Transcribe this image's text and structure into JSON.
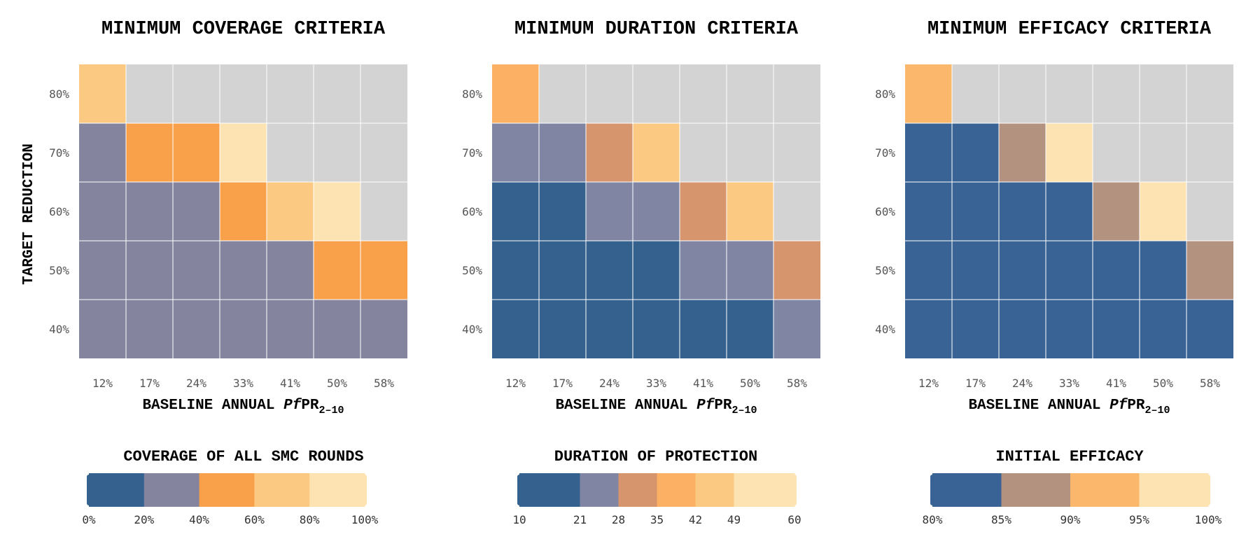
{
  "shared": {
    "ylabel": "TARGET REDUCTION",
    "xlabel_parts": {
      "pre": "BASELINE ANNUAL ",
      "italic": "Pf",
      "post": "PR",
      "sub": "2–10"
    },
    "x_ticks": [
      "12%",
      "17%",
      "24%",
      "33%",
      "41%",
      "50%",
      "58%"
    ],
    "y_ticks_top_to_bottom": [
      "80%",
      "70%",
      "60%",
      "50%",
      "40%"
    ]
  },
  "chart_data": [
    {
      "type": "heatmap",
      "title": "MINIMUM COVERAGE CRITERIA",
      "note": "cells hold the color-bin index (0 = lowest bin, null = not achievable / grey); rows top to bottom",
      "grid": [
        [
          3,
          null,
          null,
          null,
          null,
          null,
          null
        ],
        [
          1,
          2,
          2,
          4,
          null,
          null,
          null
        ],
        [
          1,
          1,
          1,
          2,
          3,
          4,
          null
        ],
        [
          1,
          1,
          1,
          1,
          1,
          2,
          2
        ],
        [
          1,
          1,
          1,
          1,
          1,
          1,
          1
        ]
      ],
      "legend": {
        "title": "COVERAGE OF ALL SMC ROUNDS",
        "bins": [
          {
            "from": 0,
            "to": 20,
            "color": "#35618f"
          },
          {
            "from": 20,
            "to": 40,
            "color": "#85849e"
          },
          {
            "from": 40,
            "to": 60,
            "color": "#f9a04a"
          },
          {
            "from": 60,
            "to": 80,
            "color": "#fbc981"
          },
          {
            "from": 80,
            "to": 100,
            "color": "#fde3b2"
          }
        ],
        "tick_labels": [
          "0%",
          "20%",
          "40%",
          "60%",
          "80%",
          "100%"
        ]
      }
    },
    {
      "type": "heatmap",
      "title": "MINIMUM DURATION CRITERIA",
      "note": "cells hold the color-bin index (0 = lowest bin, null = not achievable / grey); rows top to bottom",
      "grid": [
        [
          3,
          null,
          null,
          null,
          null,
          null,
          null
        ],
        [
          1,
          1,
          2,
          4,
          null,
          null,
          null
        ],
        [
          0,
          0,
          1,
          1,
          2,
          4,
          null
        ],
        [
          0,
          0,
          0,
          0,
          1,
          1,
          2
        ],
        [
          0,
          0,
          0,
          0,
          0,
          0,
          1
        ]
      ],
      "legend": {
        "title": "DURATION OF PROTECTION",
        "bins": [
          {
            "from": 10,
            "to": 21,
            "color": "#35618f"
          },
          {
            "from": 21,
            "to": 28,
            "color": "#7f85a3"
          },
          {
            "from": 28,
            "to": 35,
            "color": "#d6956d"
          },
          {
            "from": 35,
            "to": 42,
            "color": "#fbb063"
          },
          {
            "from": 42,
            "to": 49,
            "color": "#fbc981"
          },
          {
            "from": 49,
            "to": 60,
            "color": "#fde3b2"
          }
        ],
        "tick_labels": [
          "10",
          "21",
          "28",
          "35",
          "42",
          "49",
          "60"
        ]
      }
    },
    {
      "type": "heatmap",
      "title": "MINIMUM EFFICACY CRITERIA",
      "note": "cells hold the color-bin index (0 = lowest bin, null = not achievable / grey); rows top to bottom",
      "grid": [
        [
          2,
          null,
          null,
          null,
          null,
          null,
          null
        ],
        [
          0,
          0,
          1,
          3,
          null,
          null,
          null
        ],
        [
          0,
          0,
          0,
          0,
          1,
          3,
          null
        ],
        [
          0,
          0,
          0,
          0,
          0,
          0,
          1
        ],
        [
          0,
          0,
          0,
          0,
          0,
          0,
          0
        ]
      ],
      "legend": {
        "title": "INITIAL EFFICACY",
        "bins": [
          {
            "from": 80,
            "to": 85,
            "color": "#396394"
          },
          {
            "from": 85,
            "to": 90,
            "color": "#b49280"
          },
          {
            "from": 90,
            "to": 95,
            "color": "#fbb86d"
          },
          {
            "from": 95,
            "to": 100,
            "color": "#fde3b2"
          }
        ],
        "tick_labels": [
          "80%",
          "85%",
          "90%",
          "95%",
          "100%"
        ]
      }
    }
  ],
  "colors": {
    "not_achievable": "#d3d3d3",
    "grid_line": "#ffffff"
  }
}
